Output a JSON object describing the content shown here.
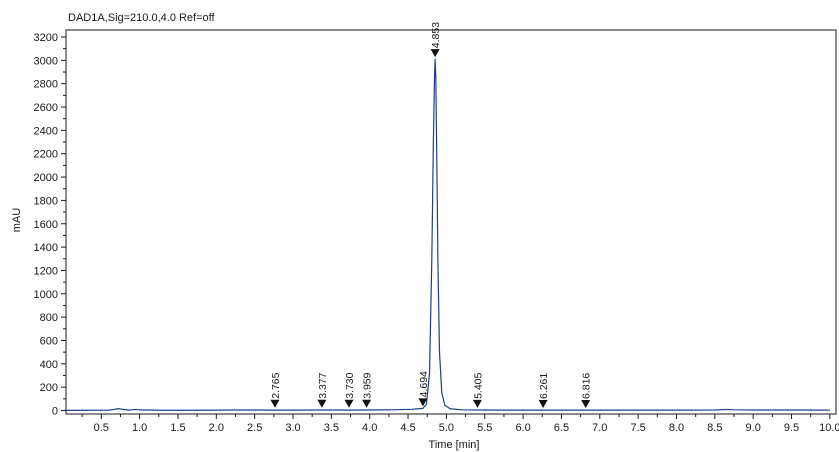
{
  "colors": {
    "trace": "#1c3f8c",
    "axis": "#1a1a1a",
    "marker": "#111111",
    "background": "#ffffff"
  },
  "chart_data": {
    "type": "line",
    "title": "DAD1A,Sig=210.0,4.0  Ref=off",
    "xlabel": "Time [min]",
    "ylabel": "mAU",
    "xlim": [
      0.04,
      10.08
    ],
    "ylim": [
      -30,
      3260
    ],
    "xticks": [
      {
        "value": 0.5,
        "label": "0.5"
      },
      {
        "value": 1.0,
        "label": "1.0"
      },
      {
        "value": 1.5,
        "label": "1.5"
      },
      {
        "value": 2.0,
        "label": "2.0"
      },
      {
        "value": 2.5,
        "label": "2.5"
      },
      {
        "value": 3.0,
        "label": "3.0"
      },
      {
        "value": 3.5,
        "label": "3.5"
      },
      {
        "value": 4.0,
        "label": "4.0"
      },
      {
        "value": 4.5,
        "label": "4.5"
      },
      {
        "value": 5.0,
        "label": "5.0"
      },
      {
        "value": 5.5,
        "label": "5.5"
      },
      {
        "value": 6.0,
        "label": "6.0"
      },
      {
        "value": 6.5,
        "label": "6.5"
      },
      {
        "value": 7.0,
        "label": "7.0"
      },
      {
        "value": 7.5,
        "label": "7.5"
      },
      {
        "value": 8.0,
        "label": "8.0"
      },
      {
        "value": 8.5,
        "label": "8.5"
      },
      {
        "value": 9.0,
        "label": "9.0"
      },
      {
        "value": 9.5,
        "label": "9.5"
      },
      {
        "value": 10.0,
        "label": "10.0"
      }
    ],
    "yticks": [
      {
        "value": 0,
        "label": "0"
      },
      {
        "value": 200,
        "label": "200"
      },
      {
        "value": 400,
        "label": "400"
      },
      {
        "value": 600,
        "label": "600"
      },
      {
        "value": 800,
        "label": "800"
      },
      {
        "value": 1000,
        "label": "1000"
      },
      {
        "value": 1200,
        "label": "1200"
      },
      {
        "value": 1400,
        "label": "1400"
      },
      {
        "value": 1600,
        "label": "1600"
      },
      {
        "value": 1800,
        "label": "1800"
      },
      {
        "value": 2000,
        "label": "2000"
      },
      {
        "value": 2200,
        "label": "2200"
      },
      {
        "value": 2400,
        "label": "2400"
      },
      {
        "value": 2600,
        "label": "2600"
      },
      {
        "value": 2800,
        "label": "2800"
      },
      {
        "value": 3000,
        "label": "3000"
      },
      {
        "value": 3200,
        "label": "3200"
      }
    ],
    "grid": false,
    "series": [
      {
        "x": [
          0.04,
          0.3,
          0.6,
          0.68,
          0.72,
          0.78,
          0.85,
          0.9,
          0.95,
          1.0,
          1.3,
          1.7,
          2.0,
          2.3,
          2.5,
          2.765,
          3.0,
          3.377,
          3.6,
          3.73,
          3.959,
          4.3,
          4.55,
          4.694,
          4.74,
          4.78,
          4.81,
          4.83,
          4.845,
          4.853,
          4.862,
          4.875,
          4.89,
          4.91,
          4.94,
          4.98,
          5.05,
          5.2,
          5.405,
          5.8,
          6.261,
          6.816,
          7.3,
          8.0,
          8.5,
          8.65,
          8.75,
          9.0,
          9.5,
          10.0
        ],
        "y": [
          1,
          2,
          3,
          10,
          16,
          10,
          3,
          6,
          9,
          5,
          2,
          2,
          3,
          4,
          4,
          3,
          3,
          4,
          4,
          3,
          4,
          6,
          10,
          18,
          55,
          320,
          1300,
          2300,
          2850,
          3010,
          2860,
          2150,
          1250,
          500,
          150,
          45,
          15,
          6,
          4,
          3,
          3,
          3,
          3,
          3,
          4,
          9,
          6,
          4,
          4,
          3
        ]
      }
    ],
    "peaks": [
      {
        "time": 2.765,
        "label": "2.765",
        "height": 6
      },
      {
        "time": 3.377,
        "label": "3.377",
        "height": 6
      },
      {
        "time": 3.73,
        "label": "3.730",
        "height": 6
      },
      {
        "time": 3.959,
        "label": "3.959",
        "height": 6
      },
      {
        "time": 4.694,
        "label": "4.694",
        "height": 18
      },
      {
        "time": 4.853,
        "label": "4.853",
        "height": 3010
      },
      {
        "time": 5.405,
        "label": "5.405",
        "height": 5
      },
      {
        "time": 6.261,
        "label": "6.261",
        "height": 4
      },
      {
        "time": 6.816,
        "label": "6.816",
        "height": 4
      }
    ]
  }
}
